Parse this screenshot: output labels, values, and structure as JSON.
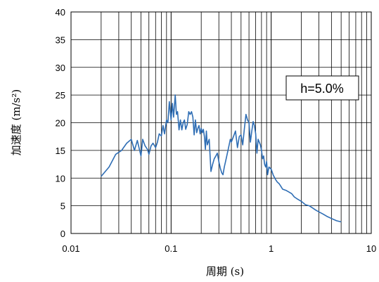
{
  "chart_data": {
    "type": "line",
    "xscale": "log",
    "xlim": [
      0.01,
      10
    ],
    "ylim": [
      0,
      40
    ],
    "xticks": [
      0.01,
      0.1,
      1,
      10
    ],
    "xtick_labels": [
      "0.01",
      "0.1",
      "1",
      "10"
    ],
    "yticks": [
      0,
      5,
      10,
      15,
      20,
      25,
      30,
      35,
      40
    ],
    "ytick_labels": [
      "0",
      "5",
      "10",
      "15",
      "20",
      "25",
      "30",
      "35",
      "40"
    ],
    "xlabel": "周期 (s)",
    "ylabel": "加速度 (m/s²)",
    "grid": true,
    "annotation": "h=5.0%",
    "line_color": "#2e6db4",
    "series": [
      {
        "x": [
          0.02,
          0.024,
          0.028,
          0.032,
          0.036,
          0.04,
          0.043,
          0.046,
          0.05,
          0.052,
          0.055,
          0.058,
          0.06,
          0.063,
          0.066,
          0.07,
          0.073,
          0.076,
          0.08,
          0.083,
          0.086,
          0.09,
          0.093,
          0.096,
          0.1,
          0.103,
          0.106,
          0.11,
          0.113,
          0.116,
          0.12,
          0.124,
          0.128,
          0.132,
          0.136,
          0.14,
          0.145,
          0.15,
          0.155,
          0.16,
          0.165,
          0.17,
          0.175,
          0.18,
          0.185,
          0.19,
          0.195,
          0.2,
          0.205,
          0.21,
          0.215,
          0.22,
          0.225,
          0.23,
          0.24,
          0.25,
          0.26,
          0.27,
          0.28,
          0.29,
          0.3,
          0.31,
          0.32,
          0.33,
          0.34,
          0.35,
          0.36,
          0.37,
          0.38,
          0.39,
          0.4,
          0.42,
          0.44,
          0.46,
          0.48,
          0.5,
          0.52,
          0.54,
          0.56,
          0.58,
          0.6,
          0.62,
          0.64,
          0.66,
          0.68,
          0.7,
          0.72,
          0.74,
          0.76,
          0.78,
          0.8,
          0.82,
          0.84,
          0.86,
          0.88,
          0.9,
          0.92,
          0.95,
          1.0,
          1.05,
          1.1,
          1.15,
          1.2,
          1.25,
          1.3,
          1.4,
          1.5,
          1.6,
          1.7,
          1.8,
          2.0,
          2.2,
          2.4,
          2.6,
          2.8,
          3.0,
          3.3,
          3.6,
          4.0,
          4.5,
          5.0
        ],
        "y": [
          10.3,
          12.0,
          14.3,
          15.0,
          16.3,
          17.0,
          15.0,
          16.8,
          14.0,
          17.0,
          15.8,
          15.2,
          14.3,
          15.8,
          16.3,
          15.5,
          16.5,
          18.0,
          17.6,
          19.5,
          18.0,
          20.5,
          20.0,
          23.8,
          20.5,
          23.5,
          21.0,
          25.0,
          21.5,
          22.0,
          18.7,
          20.5,
          18.7,
          20.0,
          20.5,
          18.8,
          19.7,
          22.0,
          21.5,
          22.0,
          21.0,
          17.8,
          20.5,
          18.2,
          19.0,
          19.5,
          18.0,
          19.0,
          18.2,
          18.8,
          17.5,
          15.2,
          18.5,
          16.0,
          17.0,
          11.2,
          12.5,
          13.5,
          14.0,
          14.5,
          13.0,
          11.8,
          11.0,
          10.6,
          12.0,
          13.0,
          14.0,
          15.0,
          16.0,
          17.0,
          16.5,
          17.5,
          18.5,
          15.5,
          17.5,
          17.8,
          16.0,
          19.0,
          21.5,
          20.5,
          20.0,
          16.5,
          18.5,
          20.2,
          19.5,
          18.0,
          14.5,
          17.0,
          16.5,
          16.0,
          15.0,
          13.5,
          14.0,
          12.5,
          12.0,
          13.0,
          10.6,
          12.0,
          11.6,
          10.5,
          9.8,
          9.3,
          9.0,
          8.5,
          8.0,
          7.8,
          7.5,
          7.2,
          6.6,
          6.3,
          5.8,
          5.2,
          5.0,
          4.6,
          4.2,
          3.9,
          3.5,
          3.1,
          2.7,
          2.3,
          2.1
        ]
      }
    ]
  }
}
